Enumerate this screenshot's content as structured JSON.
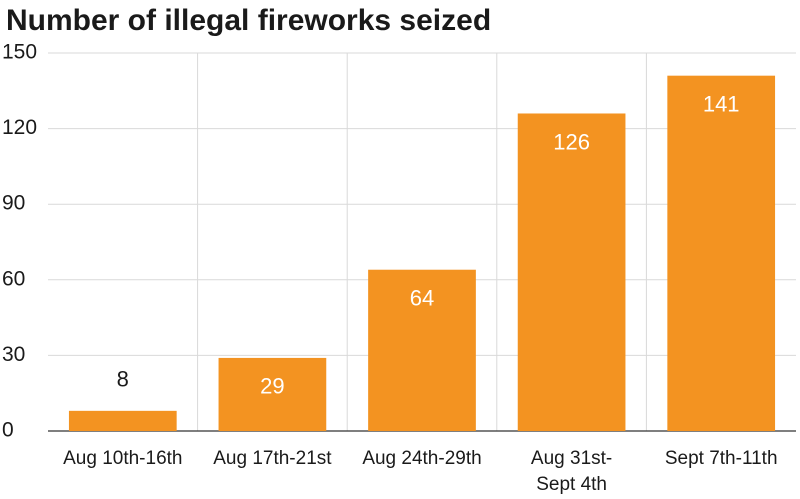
{
  "chart_data": {
    "type": "bar",
    "title": "Number of illegal fireworks seized",
    "categories": [
      "Aug 10th-16th",
      "Aug 17th-21st",
      "Aug 24th-29th",
      "Aug 31st-Sept 4th",
      "Sept 7th-11th"
    ],
    "values": [
      8,
      29,
      64,
      126,
      141
    ],
    "color": "#f39321",
    "ylim": [
      0,
      150
    ],
    "yticks": [
      0,
      30,
      60,
      90,
      120,
      150
    ],
    "grid": true
  }
}
